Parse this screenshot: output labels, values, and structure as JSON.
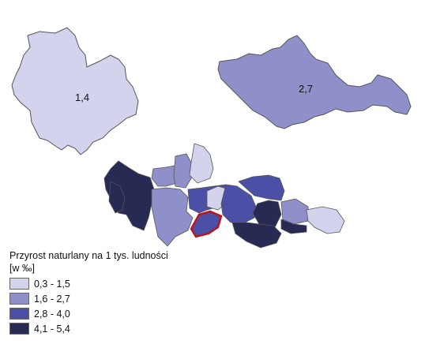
{
  "regions": [
    {
      "id": "voivodeship-left",
      "value": "1,4",
      "color": "#d3d3ee"
    },
    {
      "id": "voivodeship-right",
      "value": "2,7",
      "color": "#8f90c9"
    }
  ],
  "counties": {
    "fill_colors": [
      "#d3d3ee",
      "#8f90c9",
      "#4b4fa6",
      "#272a52"
    ],
    "highlight_color": "#c0141c"
  },
  "legend": {
    "title": "Przyrost naturlany na 1 tys. ludności",
    "unit": "[w ‰]",
    "classes": [
      {
        "label": "0,3 - 1,5",
        "color": "#d3d3ee"
      },
      {
        "label": "1,6 - 2,7",
        "color": "#8f90c9"
      },
      {
        "label": "2,8 - 4,0",
        "color": "#4b4fa6"
      },
      {
        "label": "4,1 - 5,4",
        "color": "#272a52"
      }
    ]
  }
}
